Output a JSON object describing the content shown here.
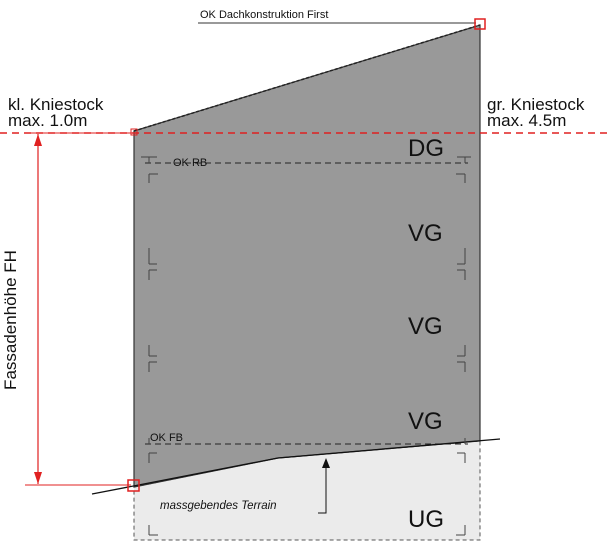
{
  "top_label": "OK Dachkonstruktion First",
  "left_label": {
    "line1": "kl. Kniestock",
    "line2": "max. 1.0m"
  },
  "right_label": {
    "line1": "gr. Kniestock",
    "line2": "max. 4.5m"
  },
  "vertical_label": "Fassadenhöhe FH",
  "floor_refs": {
    "ok_rb": "OK RB",
    "ok_fb": "OK FB"
  },
  "floors": {
    "dg": "DG",
    "vg1": "VG",
    "vg2": "VG",
    "vg3": "VG",
    "ug": "UG"
  },
  "terrain_label": "massgebendes Terrain",
  "colors": {
    "building_fill": "#999999",
    "basement_fill": "#ebebeb",
    "red": "#e02020",
    "dark": "#222222"
  }
}
